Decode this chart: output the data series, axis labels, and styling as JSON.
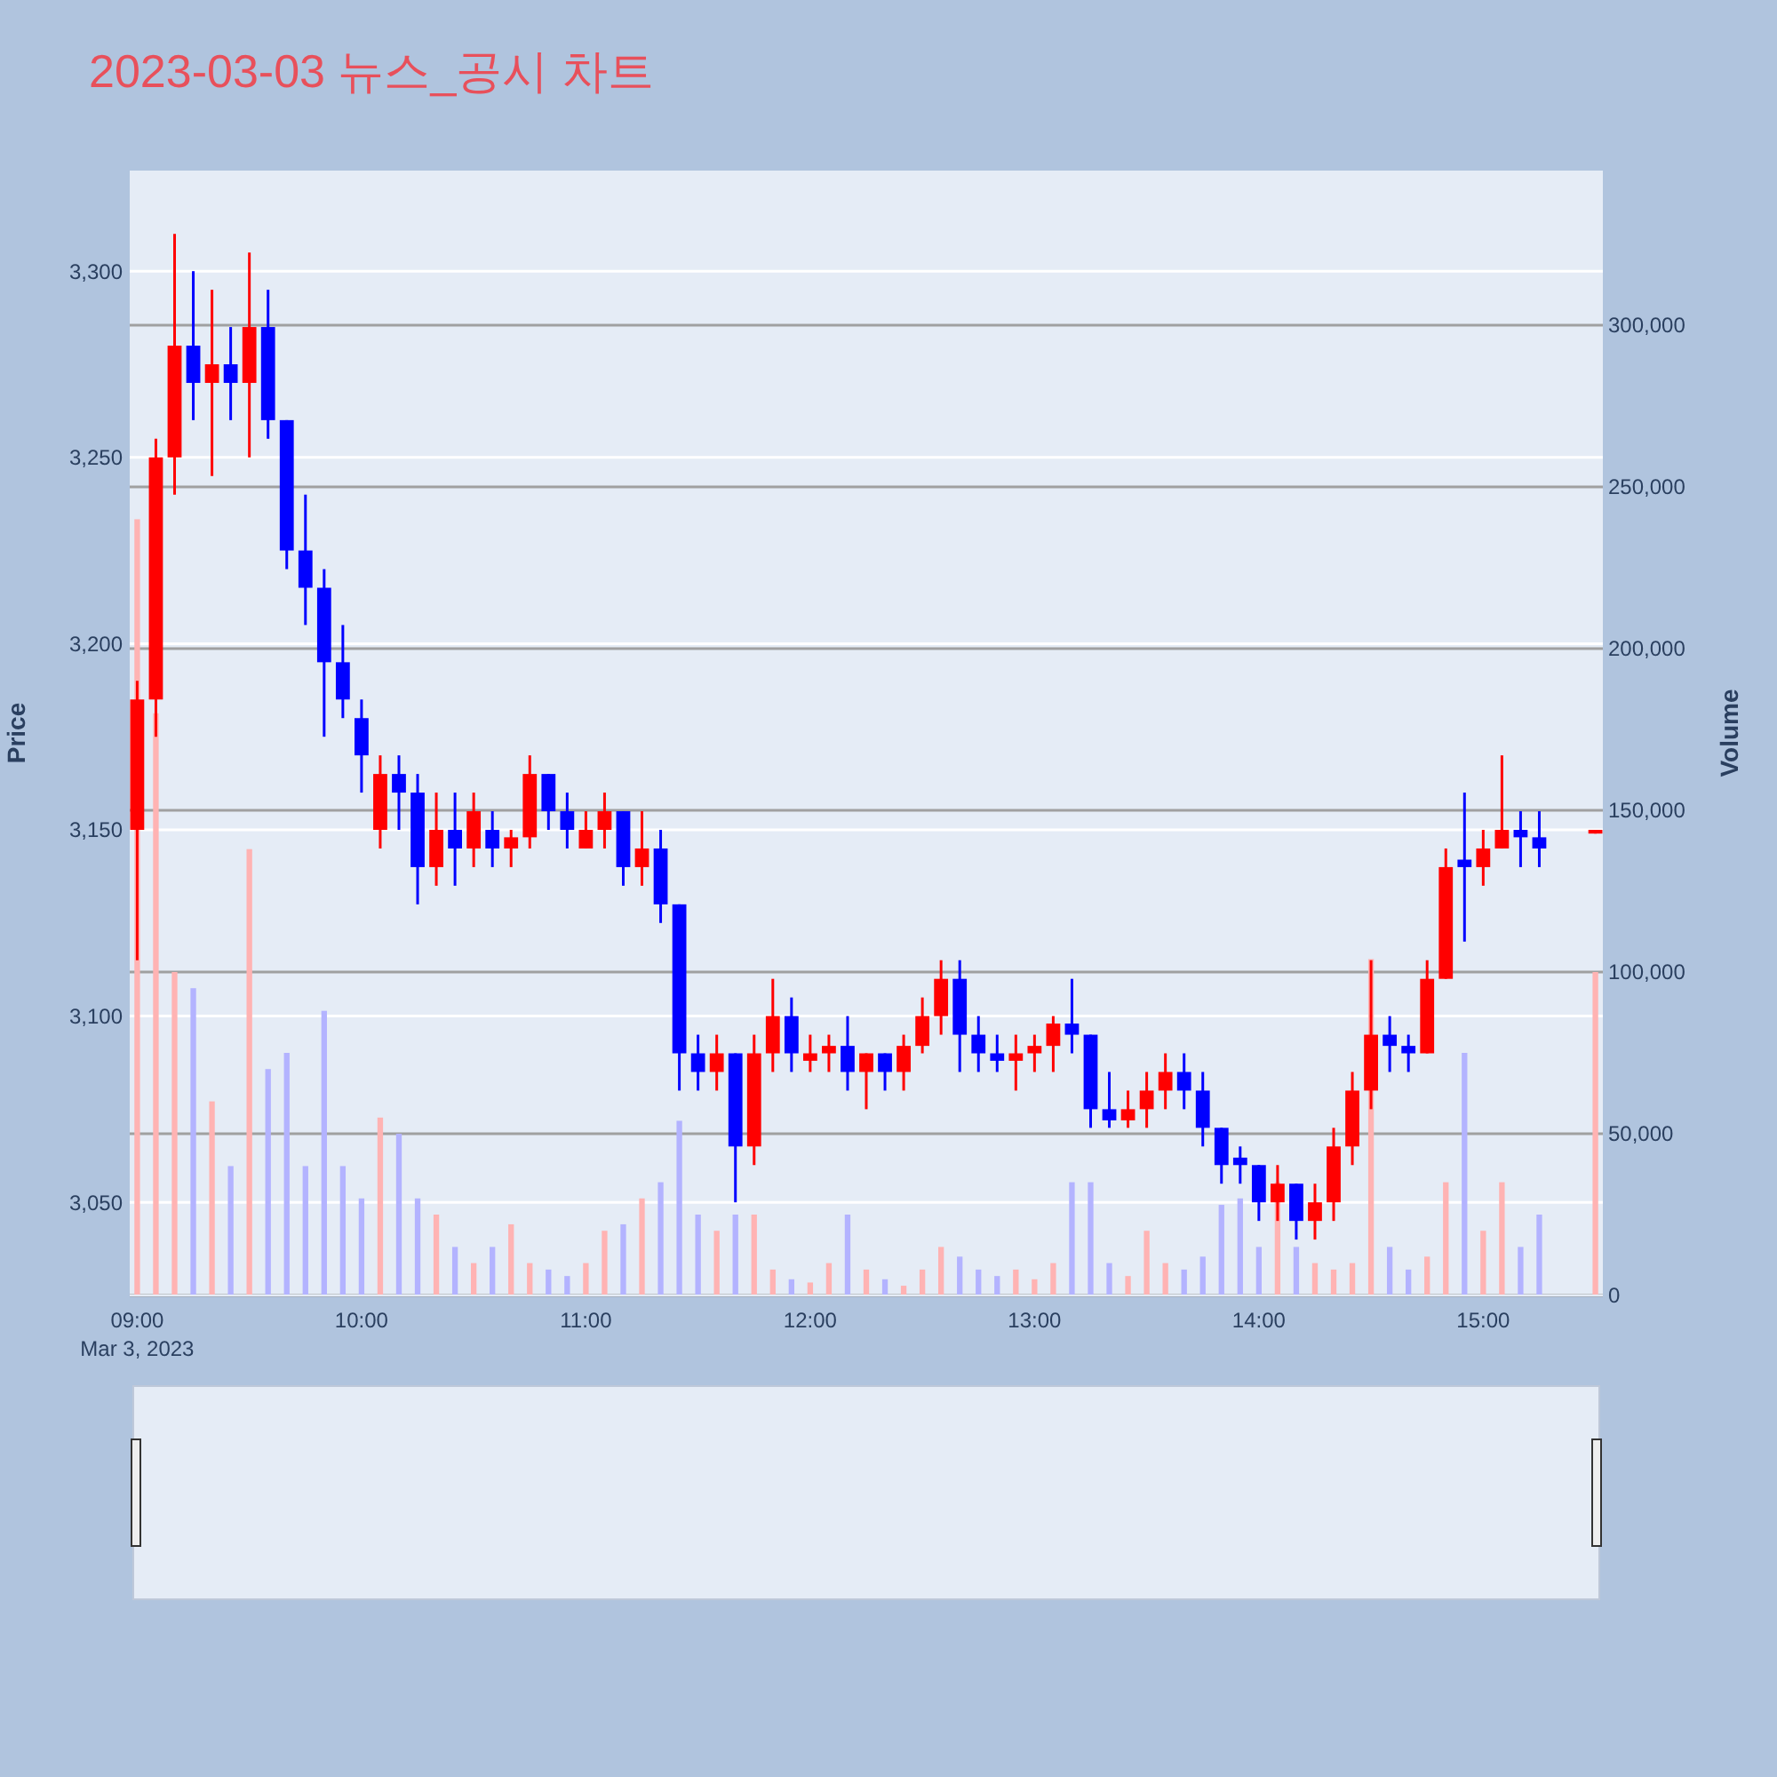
{
  "chart_data": {
    "type": "candlestick",
    "title": "2023-03-03 뉴스_공시 차트",
    "ylabel": "Price",
    "y2label": "Volume",
    "annotations": [
      "Mar 3, 2023"
    ],
    "x": [
      "2023-03-03T09:00",
      "2023-03-03T09:05",
      "2023-03-03T09:10",
      "2023-03-03T09:15",
      "2023-03-03T09:20",
      "2023-03-03T09:25",
      "2023-03-03T09:30",
      "2023-03-03T09:35",
      "2023-03-03T09:40",
      "2023-03-03T09:45",
      "2023-03-03T09:50",
      "2023-03-03T09:55",
      "2023-03-03T10:00",
      "2023-03-03T10:05",
      "2023-03-03T10:10",
      "2023-03-03T10:15",
      "2023-03-03T10:20",
      "2023-03-03T10:25",
      "2023-03-03T10:30",
      "2023-03-03T10:35",
      "2023-03-03T10:40",
      "2023-03-03T10:45",
      "2023-03-03T10:50",
      "2023-03-03T10:55",
      "2023-03-03T11:00",
      "2023-03-03T11:05",
      "2023-03-03T11:10",
      "2023-03-03T11:15",
      "2023-03-03T11:20",
      "2023-03-03T11:25",
      "2023-03-03T11:30",
      "2023-03-03T11:35",
      "2023-03-03T11:40",
      "2023-03-03T11:45",
      "2023-03-03T11:50",
      "2023-03-03T11:55",
      "2023-03-03T12:00",
      "2023-03-03T12:05",
      "2023-03-03T12:10",
      "2023-03-03T12:15",
      "2023-03-03T12:20",
      "2023-03-03T12:25",
      "2023-03-03T12:30",
      "2023-03-03T12:35",
      "2023-03-03T12:40",
      "2023-03-03T12:45",
      "2023-03-03T12:50",
      "2023-03-03T12:55",
      "2023-03-03T13:00",
      "2023-03-03T13:05",
      "2023-03-03T13:10",
      "2023-03-03T13:15",
      "2023-03-03T13:20",
      "2023-03-03T13:25",
      "2023-03-03T13:30",
      "2023-03-03T13:35",
      "2023-03-03T13:40",
      "2023-03-03T13:45",
      "2023-03-03T13:50",
      "2023-03-03T13:55",
      "2023-03-03T14:00",
      "2023-03-03T14:05",
      "2023-03-03T14:10",
      "2023-03-03T14:15",
      "2023-03-03T14:20",
      "2023-03-03T14:25",
      "2023-03-03T14:30",
      "2023-03-03T14:35",
      "2023-03-03T14:40",
      "2023-03-03T14:45",
      "2023-03-03T14:50",
      "2023-03-03T14:55",
      "2023-03-03T15:00",
      "2023-03-03T15:05",
      "2023-03-03T15:10",
      "2023-03-03T15:15",
      "2023-03-03T15:30"
    ],
    "xlim": [
      "2023-03-03T08:58",
      "2023-03-03T15:32"
    ],
    "xticks": [
      {
        "value": "2023-03-03T09:00",
        "label": "09:00"
      },
      {
        "value": "2023-03-03T10:00",
        "label": "10:00"
      },
      {
        "value": "2023-03-03T11:00",
        "label": "11:00"
      },
      {
        "value": "2023-03-03T12:00",
        "label": "12:00"
      },
      {
        "value": "2023-03-03T13:00",
        "label": "13:00"
      },
      {
        "value": "2023-03-03T14:00",
        "label": "14:00"
      },
      {
        "value": "2023-03-03T15:00",
        "label": "15:00"
      }
    ],
    "ylim": [
      3025,
      3327
    ],
    "yticks": [
      {
        "value": 3050,
        "label": "3,050"
      },
      {
        "value": 3100,
        "label": "3,100"
      },
      {
        "value": 3150,
        "label": "3,150"
      },
      {
        "value": 3200,
        "label": "3,200"
      },
      {
        "value": 3250,
        "label": "3,250"
      },
      {
        "value": 3300,
        "label": "3,300"
      }
    ],
    "y2lim": [
      0,
      347800
    ],
    "y2ticks": [
      0,
      {
        "value": 50000,
        "label": "50,000"
      },
      {
        "value": 100000,
        "label": "100,000"
      },
      {
        "value": 150000,
        "label": "150,000"
      },
      {
        "value": 200000,
        "label": "200,000"
      },
      {
        "value": 250000,
        "label": "250,000"
      },
      {
        "value": 300000,
        "label": "300,000"
      }
    ],
    "grid": true,
    "series": [
      {
        "type": "candlestick",
        "ohlc": [
          [
            3150,
            3190,
            3115,
            3185
          ],
          [
            3185,
            3255,
            3175,
            3250
          ],
          [
            3250,
            3310,
            3240,
            3280
          ],
          [
            3280,
            3300,
            3260,
            3270
          ],
          [
            3270,
            3295,
            3245,
            3275
          ],
          [
            3275,
            3285,
            3260,
            3270
          ],
          [
            3270,
            3305,
            3250,
            3285
          ],
          [
            3285,
            3295,
            3255,
            3260
          ],
          [
            3260,
            3260,
            3220,
            3225
          ],
          [
            3225,
            3240,
            3205,
            3215
          ],
          [
            3215,
            3220,
            3175,
            3195
          ],
          [
            3195,
            3205,
            3180,
            3185
          ],
          [
            3180,
            3185,
            3160,
            3170
          ],
          [
            3150,
            3170,
            3145,
            3165
          ],
          [
            3165,
            3170,
            3150,
            3160
          ],
          [
            3160,
            3165,
            3130,
            3140
          ],
          [
            3140,
            3160,
            3135,
            3150
          ],
          [
            3150,
            3160,
            3135,
            3145
          ],
          [
            3145,
            3160,
            3140,
            3155
          ],
          [
            3150,
            3155,
            3140,
            3145
          ],
          [
            3145,
            3150,
            3140,
            3148
          ],
          [
            3148,
            3170,
            3145,
            3165
          ],
          [
            3165,
            3165,
            3150,
            3155
          ],
          [
            3155,
            3160,
            3145,
            3150
          ],
          [
            3145,
            3155,
            3145,
            3150
          ],
          [
            3150,
            3160,
            3145,
            3155
          ],
          [
            3155,
            3155,
            3135,
            3140
          ],
          [
            3140,
            3155,
            3135,
            3145
          ],
          [
            3145,
            3150,
            3125,
            3130
          ],
          [
            3130,
            3130,
            3080,
            3090
          ],
          [
            3090,
            3095,
            3080,
            3085
          ],
          [
            3085,
            3095,
            3080,
            3090
          ],
          [
            3090,
            3090,
            3050,
            3065
          ],
          [
            3065,
            3095,
            3060,
            3090
          ],
          [
            3090,
            3110,
            3085,
            3100
          ],
          [
            3100,
            3105,
            3085,
            3090
          ],
          [
            3088,
            3095,
            3085,
            3090
          ],
          [
            3090,
            3095,
            3085,
            3092
          ],
          [
            3092,
            3100,
            3080,
            3085
          ],
          [
            3085,
            3090,
            3075,
            3090
          ],
          [
            3090,
            3090,
            3080,
            3085
          ],
          [
            3085,
            3095,
            3080,
            3092
          ],
          [
            3092,
            3105,
            3090,
            3100
          ],
          [
            3100,
            3115,
            3095,
            3110
          ],
          [
            3110,
            3115,
            3085,
            3095
          ],
          [
            3095,
            3100,
            3085,
            3090
          ],
          [
            3090,
            3095,
            3085,
            3088
          ],
          [
            3088,
            3095,
            3080,
            3090
          ],
          [
            3090,
            3095,
            3085,
            3092
          ],
          [
            3092,
            3100,
            3085,
            3098
          ],
          [
            3098,
            3110,
            3090,
            3095
          ],
          [
            3095,
            3095,
            3070,
            3075
          ],
          [
            3075,
            3085,
            3070,
            3072
          ],
          [
            3072,
            3080,
            3070,
            3075
          ],
          [
            3075,
            3085,
            3070,
            3080
          ],
          [
            3080,
            3090,
            3075,
            3085
          ],
          [
            3085,
            3090,
            3075,
            3080
          ],
          [
            3080,
            3085,
            3065,
            3070
          ],
          [
            3070,
            3070,
            3055,
            3060
          ],
          [
            3062,
            3065,
            3055,
            3060
          ],
          [
            3060,
            3060,
            3045,
            3050
          ],
          [
            3050,
            3060,
            3045,
            3055
          ],
          [
            3055,
            3055,
            3040,
            3045
          ],
          [
            3045,
            3055,
            3040,
            3050
          ],
          [
            3050,
            3070,
            3045,
            3065
          ],
          [
            3065,
            3085,
            3060,
            3080
          ],
          [
            3080,
            3115,
            3075,
            3095
          ],
          [
            3095,
            3100,
            3085,
            3092
          ],
          [
            3092,
            3095,
            3085,
            3090
          ],
          [
            3090,
            3115,
            3090,
            3110
          ],
          [
            3110,
            3145,
            3110,
            3140
          ],
          [
            3142,
            3160,
            3120,
            3140
          ],
          [
            3140,
            3150,
            3135,
            3145
          ],
          [
            3145,
            3170,
            3145,
            3150
          ],
          [
            3150,
            3155,
            3140,
            3148
          ],
          [
            3148,
            3155,
            3140,
            3145
          ],
          [
            3149,
            3150,
            3149,
            3150
          ]
        ],
        "colors": [
          "#ff0000",
          "#ff0000",
          "#ff0000",
          "#0000ff",
          "#ff0000",
          "#0000ff",
          "#ff0000",
          "#0000ff",
          "#0000ff",
          "#0000ff",
          "#0000ff",
          "#0000ff",
          "#0000ff",
          "#ff0000",
          "#0000ff",
          "#0000ff",
          "#ff0000",
          "#0000ff",
          "#ff0000",
          "#0000ff",
          "#ff0000",
          "#ff0000",
          "#0000ff",
          "#0000ff",
          "#ff0000",
          "#ff0000",
          "#0000ff",
          "#ff0000",
          "#0000ff",
          "#0000ff",
          "#0000ff",
          "#ff0000",
          "#0000ff",
          "#ff0000",
          "#ff0000",
          "#0000ff",
          "#ff0000",
          "#ff0000",
          "#0000ff",
          "#ff0000",
          "#0000ff",
          "#ff0000",
          "#ff0000",
          "#ff0000",
          "#0000ff",
          "#0000ff",
          "#0000ff",
          "#ff0000",
          "#ff0000",
          "#ff0000",
          "#0000ff",
          "#0000ff",
          "#0000ff",
          "#ff0000",
          "#ff0000",
          "#ff0000",
          "#0000ff",
          "#0000ff",
          "#0000ff",
          "#0000ff",
          "#0000ff",
          "#ff0000",
          "#0000ff",
          "#ff0000",
          "#ff0000",
          "#ff0000",
          "#ff0000",
          "#0000ff",
          "#0000ff",
          "#ff0000",
          "#ff0000",
          "#0000ff",
          "#ff0000",
          "#ff0000",
          "#0000ff",
          "#0000ff",
          "#ff0000"
        ]
      },
      {
        "type": "bar",
        "axis": "y2",
        "values": [
          240000,
          180000,
          100000,
          95000,
          60000,
          40000,
          138000,
          70000,
          75000,
          40000,
          88000,
          40000,
          30000,
          55000,
          50000,
          30000,
          25000,
          15000,
          10000,
          15000,
          22000,
          10000,
          8000,
          6000,
          10000,
          20000,
          22000,
          30000,
          35000,
          54000,
          25000,
          20000,
          25000,
          25000,
          8000,
          5000,
          4000,
          10000,
          25000,
          8000,
          5000,
          3000,
          8000,
          15000,
          12000,
          8000,
          6000,
          8000,
          5000,
          10000,
          35000,
          35000,
          10000,
          6000,
          20000,
          10000,
          8000,
          12000,
          28000,
          30000,
          15000,
          35000,
          15000,
          10000,
          8000,
          10000,
          104000,
          15000,
          8000,
          12000,
          35000,
          75000,
          20000,
          35000,
          15000,
          25000,
          100000
        ],
        "colors": [
          "#ffb3b3",
          "#ffb3b3",
          "#ffb3b3",
          "#b3b3ff",
          "#ffb3b3",
          "#b3b3ff",
          "#ffb3b3",
          "#b3b3ff",
          "#b3b3ff",
          "#b3b3ff",
          "#b3b3ff",
          "#b3b3ff",
          "#b3b3ff",
          "#ffb3b3",
          "#b3b3ff",
          "#b3b3ff",
          "#ffb3b3",
          "#b3b3ff",
          "#ffb3b3",
          "#b3b3ff",
          "#ffb3b3",
          "#ffb3b3",
          "#b3b3ff",
          "#b3b3ff",
          "#ffb3b3",
          "#ffb3b3",
          "#b3b3ff",
          "#ffb3b3",
          "#b3b3ff",
          "#b3b3ff",
          "#b3b3ff",
          "#ffb3b3",
          "#b3b3ff",
          "#ffb3b3",
          "#ffb3b3",
          "#b3b3ff",
          "#ffb3b3",
          "#ffb3b3",
          "#b3b3ff",
          "#ffb3b3",
          "#b3b3ff",
          "#ffb3b3",
          "#ffb3b3",
          "#ffb3b3",
          "#b3b3ff",
          "#b3b3ff",
          "#b3b3ff",
          "#ffb3b3",
          "#ffb3b3",
          "#ffb3b3",
          "#b3b3ff",
          "#b3b3ff",
          "#b3b3ff",
          "#ffb3b3",
          "#ffb3b3",
          "#ffb3b3",
          "#b3b3ff",
          "#b3b3ff",
          "#b3b3ff",
          "#b3b3ff",
          "#b3b3ff",
          "#ffb3b3",
          "#b3b3ff",
          "#ffb3b3",
          "#ffb3b3",
          "#ffb3b3",
          "#ffb3b3",
          "#b3b3ff",
          "#b3b3ff",
          "#ffb3b3",
          "#ffb3b3",
          "#b3b3ff",
          "#ffb3b3",
          "#ffb3b3",
          "#b3b3ff",
          "#b3b3ff",
          "#ffb3b3"
        ]
      }
    ]
  }
}
